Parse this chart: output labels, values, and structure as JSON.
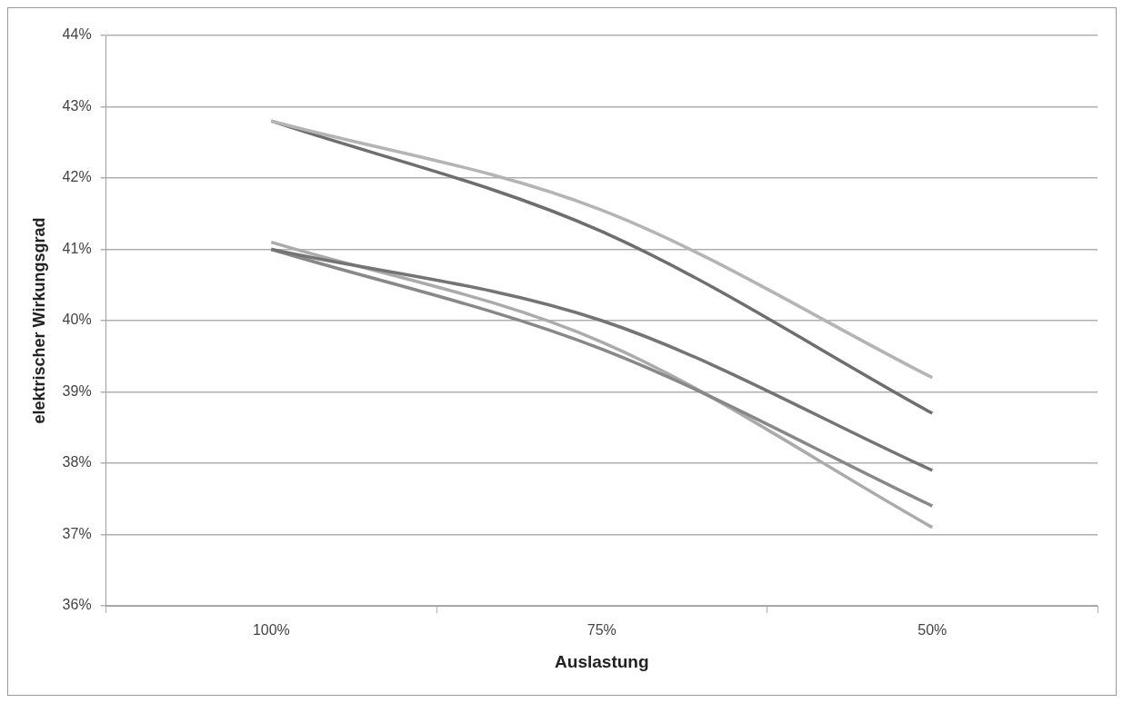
{
  "chart_data": {
    "type": "line",
    "xlabel": "Auslastung",
    "ylabel": "elektrischer Wirkungsgrad",
    "categories": [
      "100%",
      "75%",
      "50%"
    ],
    "series": [
      {
        "color": "#b4b4b4",
        "values": [
          42.8,
          41.55,
          39.2
        ]
      },
      {
        "color": "#6e6e6e",
        "values": [
          42.8,
          41.25,
          38.7
        ]
      },
      {
        "color": "#747474",
        "values": [
          41.0,
          40.0,
          37.9
        ]
      },
      {
        "color": "#888888",
        "values": [
          41.0,
          39.6,
          37.4
        ]
      },
      {
        "color": "#ababab",
        "values": [
          41.1,
          39.7,
          37.1
        ]
      }
    ],
    "ylim": [
      36,
      44
    ],
    "yticks": [
      {
        "value": 36,
        "label": "36%"
      },
      {
        "value": 37,
        "label": "37%"
      },
      {
        "value": 38,
        "label": "38%"
      },
      {
        "value": 39,
        "label": "39%"
      },
      {
        "value": 40,
        "label": "40%"
      },
      {
        "value": 41,
        "label": "41%"
      },
      {
        "value": 42,
        "label": "42%"
      },
      {
        "value": 43,
        "label": "43%"
      },
      {
        "value": 44,
        "label": "44%"
      }
    ],
    "grid": "y",
    "legend": false,
    "marker": "none",
    "line_style": "solid"
  }
}
